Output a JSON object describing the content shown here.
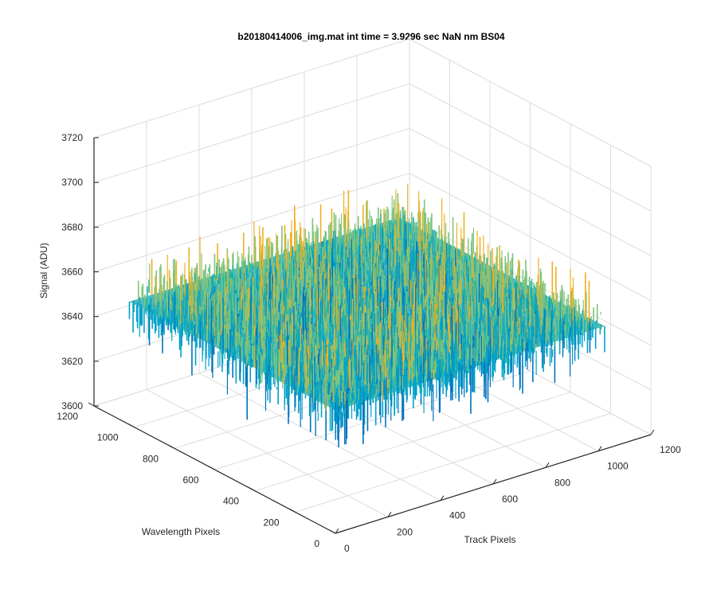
{
  "chart_data": {
    "type": "surface",
    "title": "b20180414006_img.mat int time = 3.9296 sec  NaN nm BS04",
    "xlabel": "Track Pixels",
    "ylabel": "Wavelength Pixels",
    "zlabel": "Signal (ADU)",
    "xlim": [
      0,
      1200
    ],
    "ylim": [
      0,
      1200
    ],
    "zlim": [
      3600,
      3720
    ],
    "x_ticks": [
      "0",
      "200",
      "400",
      "600",
      "800",
      "1000",
      "1200"
    ],
    "y_ticks": [
      "0",
      "200",
      "400",
      "600",
      "800",
      "1000",
      "1200"
    ],
    "z_ticks": [
      "3600",
      "3620",
      "3640",
      "3660",
      "3680",
      "3700",
      "3720"
    ],
    "x_extent": [
      0,
      1024
    ],
    "y_extent": [
      0,
      1024
    ],
    "signal_mean": 3655,
    "signal_noise_range": [
      3620,
      3700
    ],
    "colormap": [
      "#0072BD",
      "#00A0C8",
      "#1FB5A9",
      "#7FC47E",
      "#EDB120"
    ],
    "grid": true
  }
}
